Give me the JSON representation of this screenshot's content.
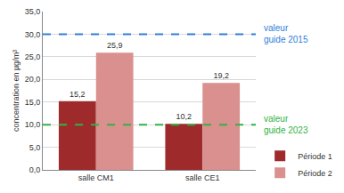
{
  "chart_data": {
    "type": "bar",
    "y_label": "concentration en µg/m³",
    "categories": [
      "salle CM1",
      "salle CE1"
    ],
    "series": [
      {
        "name": "Période 1",
        "color": "#9e2a2c",
        "values": [
          15.2,
          10.2
        ],
        "value_labels": [
          "15,2",
          "10,2"
        ]
      },
      {
        "name": "Période 2",
        "color": "#d9908f",
        "values": [
          25.9,
          19.2
        ],
        "value_labels": [
          "25,9",
          "19,2"
        ]
      }
    ],
    "ylim": [
      0,
      35
    ],
    "yticks": [
      {
        "value": 0,
        "label": "0,0"
      },
      {
        "value": 5,
        "label": "5,0"
      },
      {
        "value": 10,
        "label": "10,0"
      },
      {
        "value": 15,
        "label": "15,0"
      },
      {
        "value": 20,
        "label": "20,0"
      },
      {
        "value": 25,
        "label": "25,0"
      },
      {
        "value": 30,
        "label": "30,0"
      },
      {
        "value": 35,
        "label": "35,0"
      }
    ],
    "reference_lines": [
      {
        "value": 30,
        "label": "valeur guide 2015",
        "color": "#2f7fd6",
        "line_style": "dash"
      },
      {
        "value": 10,
        "label": "valeur guide 2023",
        "color": "#2fb344",
        "line_style": "dash"
      }
    ],
    "grid": true,
    "data_labels": true,
    "legend": "bottom right"
  }
}
